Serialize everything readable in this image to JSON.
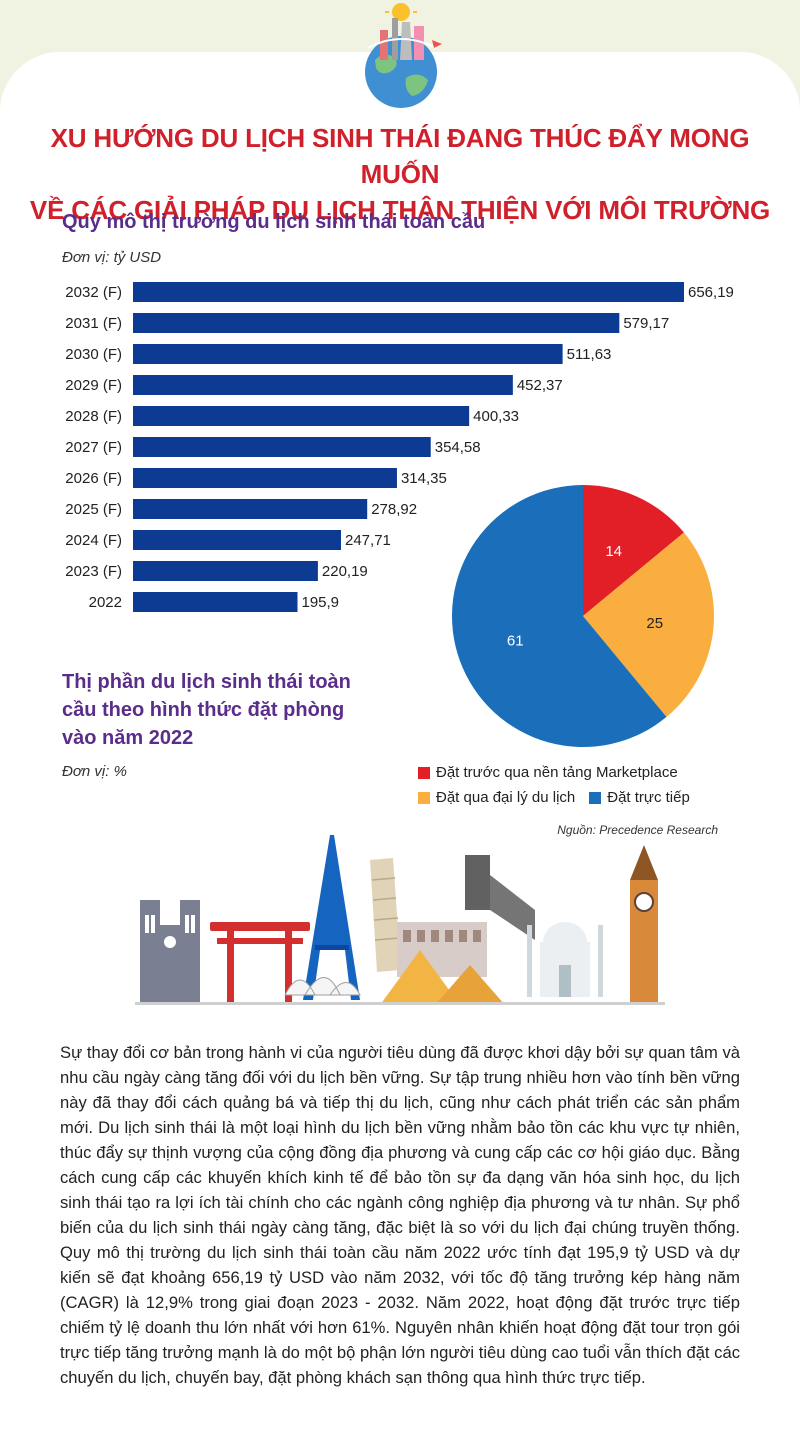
{
  "title_lines": [
    "XU HƯỚNG DU LỊCH SINH THÁI ĐANG THÚC ĐẨY MONG MUỐN",
    "VỀ CÁC GIẢI PHÁP DU LỊCH THÂN THIỆN VỚI MÔI TRƯỜNG"
  ],
  "colors": {
    "bar": "#0d3b93",
    "title": "#d0202b",
    "subtitle": "#5b2d8b",
    "pie_marketplace": "#e21e26",
    "pie_agency": "#f9ae3f",
    "pie_direct": "#1b6fba"
  },
  "icons": [
    "globe-landmarks-icon",
    "world-landmarks-illustration"
  ],
  "chart_data": [
    {
      "type": "bar",
      "orientation": "horizontal",
      "title": "Quy mô thị trường du lịch sinh thái toàn cầu",
      "unit": "Đơn vị: tỷ USD",
      "categories": [
        "2032 (F)",
        "2031 (F)",
        "2030 (F)",
        "2029 (F)",
        "2028 (F)",
        "2027 (F)",
        "2026 (F)",
        "2025 (F)",
        "2024 (F)",
        "2023 (F)",
        "2022"
      ],
      "values": [
        656.19,
        579.17,
        511.63,
        452.37,
        400.33,
        354.58,
        314.35,
        278.92,
        247.71,
        220.19,
        195.9
      ],
      "value_labels": [
        "656,19",
        "579,17",
        "511,63",
        "452,37",
        "400,33",
        "354,58",
        "314,35",
        "278,92",
        "247,71",
        "220,19",
        "195,9"
      ],
      "xlim": [
        0,
        656.19
      ],
      "grid": false
    },
    {
      "type": "pie",
      "title": "Thị phần du lịch sinh thái toàn cầu theo hình thức đặt phòng vào năm 2022",
      "unit": "Đơn vị: %",
      "slices": [
        {
          "label": "Đặt trước qua nền tảng Marketplace",
          "value": 14,
          "color": "#e21e26"
        },
        {
          "label": "Đặt qua đại lý du lịch",
          "value": 25,
          "color": "#f9ae3f"
        },
        {
          "label": "Đặt trực tiếp",
          "value": 61,
          "color": "#1b6fba"
        }
      ],
      "legend_placement": "bottom",
      "source": "Nguồn: Precedence Research"
    }
  ],
  "body_text": "Sự thay đổi cơ bản trong hành vi của người tiêu dùng đã được khơi dậy bởi sự quan tâm và nhu cầu ngày càng tăng đối với du lịch bền vững. Sự tập trung nhiều hơn vào tính bền vững này đã thay đổi cách quảng bá và tiếp thị du lịch, cũng như cách phát triển các sản phẩm mới. Du lịch sinh thái là một loại hình du lịch bền vững nhằm bảo tồn các khu vực tự nhiên, thúc đẩy sự thịnh vượng của cộng đồng địa phương và cung cấp các cơ hội giáo dục. Bằng cách cung cấp các khuyến khích kinh tế để bảo tồn sự đa dạng văn hóa sinh học, du lịch sinh thái tạo ra lợi ích tài chính cho các ngành công nghiệp địa phương và tư nhân. Sự phổ biến của du lịch sinh thái ngày càng tăng, đặc biệt là so với du lịch đại chúng truyền thống. Quy mô thị trường du lịch sinh thái toàn cầu năm 2022 ước tính đạt 195,9 tỷ USD và dự kiến sẽ đạt khoảng 656,19 tỷ USD vào năm 2032, với tốc độ tăng trưởng kép hàng năm (CAGR) là 12,9% trong giai đoạn 2023 - 2032. Năm 2022, hoạt động đặt trước trực tiếp chiếm tỷ lệ doanh thu lớn nhất với hơn 61%. Nguyên nhân khiến hoạt động đặt tour trọn gói trực tiếp tăng trưởng mạnh là do một bộ phận lớn người tiêu dùng cao tuổi vẫn thích đặt các chuyến du lịch, chuyến bay, đặt phòng khách sạn thông qua hình thức trực tiếp."
}
